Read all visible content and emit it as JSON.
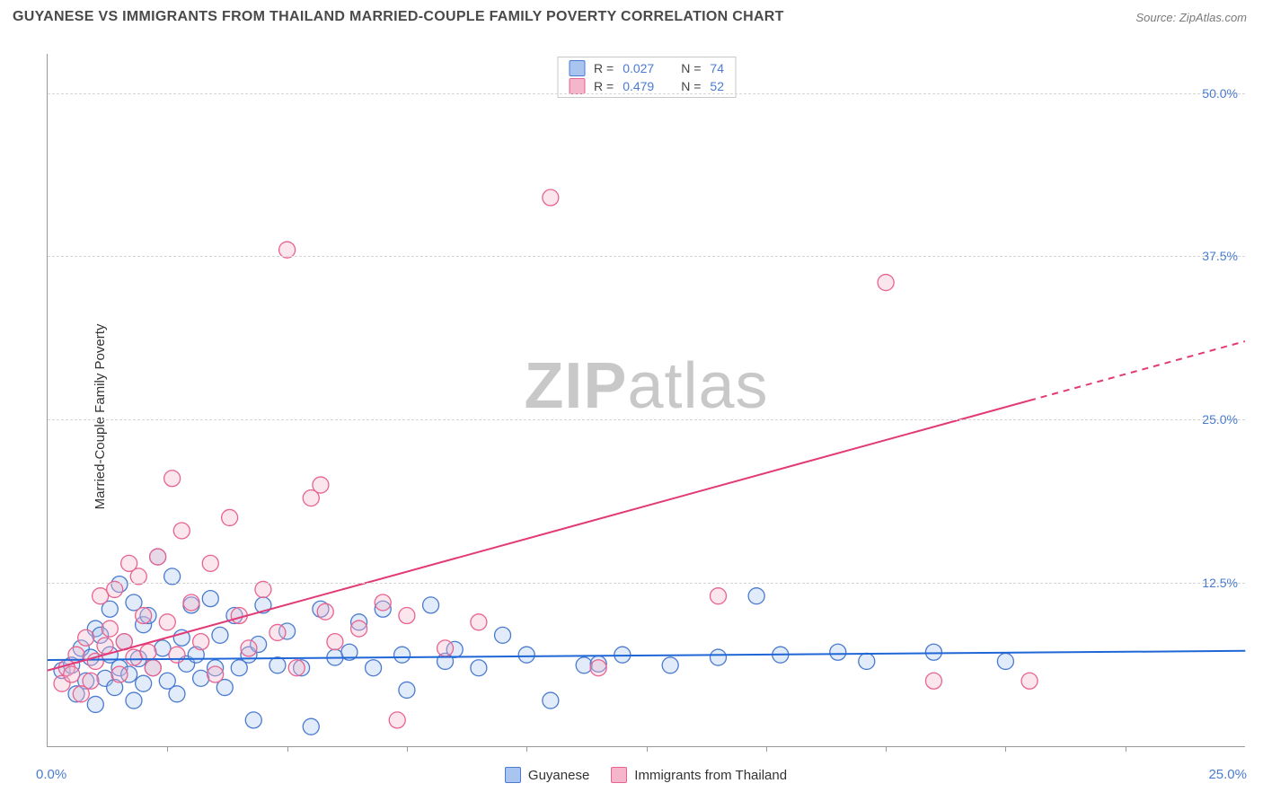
{
  "title": "GUYANESE VS IMMIGRANTS FROM THAILAND MARRIED-COUPLE FAMILY POVERTY CORRELATION CHART",
  "source": "Source: ZipAtlas.com",
  "ylabel": "Married-Couple Family Poverty",
  "watermark": {
    "bold": "ZIP",
    "rest": "atlas"
  },
  "chart": {
    "type": "scatter",
    "background_color": "#ffffff",
    "grid_color": "#d5d5d5",
    "axis_color": "#999999",
    "tick_label_color": "#4a7bd0",
    "xlim": [
      0,
      25
    ],
    "ylim": [
      0,
      53
    ],
    "x0_label": "0.0%",
    "xmax_label": "25.0%",
    "ytick_values": [
      12.5,
      25.0,
      37.5,
      50.0
    ],
    "ytick_labels": [
      "12.5%",
      "25.0%",
      "37.5%",
      "50.0%"
    ],
    "xtick_positions_pct": [
      10,
      20,
      30,
      40,
      50,
      60,
      70,
      80,
      90
    ],
    "marker_radius": 9,
    "marker_fill_opacity": 0.35,
    "marker_stroke_width": 1.3,
    "line_width": 2,
    "series": [
      {
        "key": "guyanese",
        "label": "Guyanese",
        "color_stroke": "#4a7bd0",
        "color_fill": "#a9c5ef",
        "trend_color": "#1f66d6",
        "trend": {
          "y_at_x0": 6.6,
          "y_at_xmax": 7.3,
          "dash_from_x": 25
        },
        "points": [
          [
            0.3,
            5.8
          ],
          [
            0.5,
            6.2
          ],
          [
            0.6,
            4.0
          ],
          [
            0.7,
            7.5
          ],
          [
            0.8,
            5.0
          ],
          [
            0.9,
            6.8
          ],
          [
            1.0,
            9.0
          ],
          [
            1.0,
            3.2
          ],
          [
            1.1,
            8.5
          ],
          [
            1.2,
            5.2
          ],
          [
            1.3,
            10.5
          ],
          [
            1.3,
            7.0
          ],
          [
            1.4,
            4.5
          ],
          [
            1.5,
            12.4
          ],
          [
            1.5,
            6.0
          ],
          [
            1.6,
            8.0
          ],
          [
            1.7,
            5.5
          ],
          [
            1.8,
            11.0
          ],
          [
            1.8,
            3.5
          ],
          [
            1.9,
            6.7
          ],
          [
            2.0,
            9.3
          ],
          [
            2.0,
            4.8
          ],
          [
            2.1,
            10.0
          ],
          [
            2.2,
            6.0
          ],
          [
            2.3,
            14.5
          ],
          [
            2.4,
            7.5
          ],
          [
            2.5,
            5.0
          ],
          [
            2.6,
            13.0
          ],
          [
            2.7,
            4.0
          ],
          [
            2.8,
            8.3
          ],
          [
            2.9,
            6.3
          ],
          [
            3.0,
            10.8
          ],
          [
            3.1,
            7.0
          ],
          [
            3.2,
            5.2
          ],
          [
            3.4,
            11.3
          ],
          [
            3.5,
            6.0
          ],
          [
            3.6,
            8.5
          ],
          [
            3.7,
            4.5
          ],
          [
            3.9,
            10.0
          ],
          [
            4.0,
            6.0
          ],
          [
            4.2,
            7.0
          ],
          [
            4.3,
            2.0
          ],
          [
            4.4,
            7.8
          ],
          [
            4.5,
            10.8
          ],
          [
            4.8,
            6.2
          ],
          [
            5.0,
            8.8
          ],
          [
            5.3,
            6.0
          ],
          [
            5.5,
            1.5
          ],
          [
            5.7,
            10.5
          ],
          [
            6.0,
            6.8
          ],
          [
            6.3,
            7.2
          ],
          [
            6.5,
            9.5
          ],
          [
            6.8,
            6.0
          ],
          [
            7.0,
            10.5
          ],
          [
            7.4,
            7.0
          ],
          [
            7.5,
            4.3
          ],
          [
            8.0,
            10.8
          ],
          [
            8.3,
            6.5
          ],
          [
            8.5,
            7.4
          ],
          [
            9.0,
            6.0
          ],
          [
            9.5,
            8.5
          ],
          [
            10.0,
            7.0
          ],
          [
            10.5,
            3.5
          ],
          [
            11.2,
            6.2
          ],
          [
            11.5,
            6.3
          ],
          [
            12.0,
            7.0
          ],
          [
            13.0,
            6.2
          ],
          [
            14.0,
            6.8
          ],
          [
            14.8,
            11.5
          ],
          [
            15.3,
            7.0
          ],
          [
            16.5,
            7.2
          ],
          [
            17.1,
            6.5
          ],
          [
            18.5,
            7.2
          ],
          [
            20.0,
            6.5
          ]
        ]
      },
      {
        "key": "thailand",
        "label": "Immigrants from Thailand",
        "color_stroke": "#e8638f",
        "color_fill": "#f5b6cc",
        "trend_color": "#e23a76",
        "trend": {
          "y_at_x0": 5.8,
          "y_at_xmax": 31.0,
          "dash_from_x": 20.5
        },
        "points": [
          [
            0.3,
            4.8
          ],
          [
            0.4,
            6.0
          ],
          [
            0.5,
            5.5
          ],
          [
            0.6,
            7.0
          ],
          [
            0.7,
            4.0
          ],
          [
            0.8,
            8.3
          ],
          [
            0.9,
            5.0
          ],
          [
            1.0,
            6.5
          ],
          [
            1.1,
            11.5
          ],
          [
            1.2,
            7.7
          ],
          [
            1.3,
            9.0
          ],
          [
            1.4,
            12.0
          ],
          [
            1.5,
            5.5
          ],
          [
            1.6,
            8.0
          ],
          [
            1.7,
            14.0
          ],
          [
            1.8,
            6.8
          ],
          [
            1.9,
            13.0
          ],
          [
            2.0,
            10.0
          ],
          [
            2.1,
            7.2
          ],
          [
            2.2,
            6.0
          ],
          [
            2.3,
            14.5
          ],
          [
            2.5,
            9.5
          ],
          [
            2.6,
            20.5
          ],
          [
            2.7,
            7.0
          ],
          [
            2.8,
            16.5
          ],
          [
            3.0,
            11.0
          ],
          [
            3.2,
            8.0
          ],
          [
            3.4,
            14.0
          ],
          [
            3.5,
            5.5
          ],
          [
            3.8,
            17.5
          ],
          [
            4.0,
            10.0
          ],
          [
            4.2,
            7.5
          ],
          [
            4.5,
            12.0
          ],
          [
            4.8,
            8.7
          ],
          [
            5.0,
            38.0
          ],
          [
            5.2,
            6.0
          ],
          [
            5.5,
            19.0
          ],
          [
            5.7,
            20.0
          ],
          [
            5.8,
            10.3
          ],
          [
            6.0,
            8.0
          ],
          [
            6.5,
            9.0
          ],
          [
            7.0,
            11.0
          ],
          [
            7.3,
            2.0
          ],
          [
            7.5,
            10.0
          ],
          [
            8.3,
            7.5
          ],
          [
            9.0,
            9.5
          ],
          [
            10.5,
            42.0
          ],
          [
            11.5,
            6.0
          ],
          [
            14.0,
            11.5
          ],
          [
            17.5,
            35.5
          ],
          [
            18.5,
            5.0
          ],
          [
            20.5,
            5.0
          ]
        ]
      }
    ]
  },
  "top_legend": [
    {
      "series_key": "guyanese",
      "r_label": "R =",
      "r_value": "0.027",
      "n_label": "N =",
      "n_value": "74"
    },
    {
      "series_key": "thailand",
      "r_label": "R =",
      "r_value": "0.479",
      "n_label": "N =",
      "n_value": "52"
    }
  ]
}
